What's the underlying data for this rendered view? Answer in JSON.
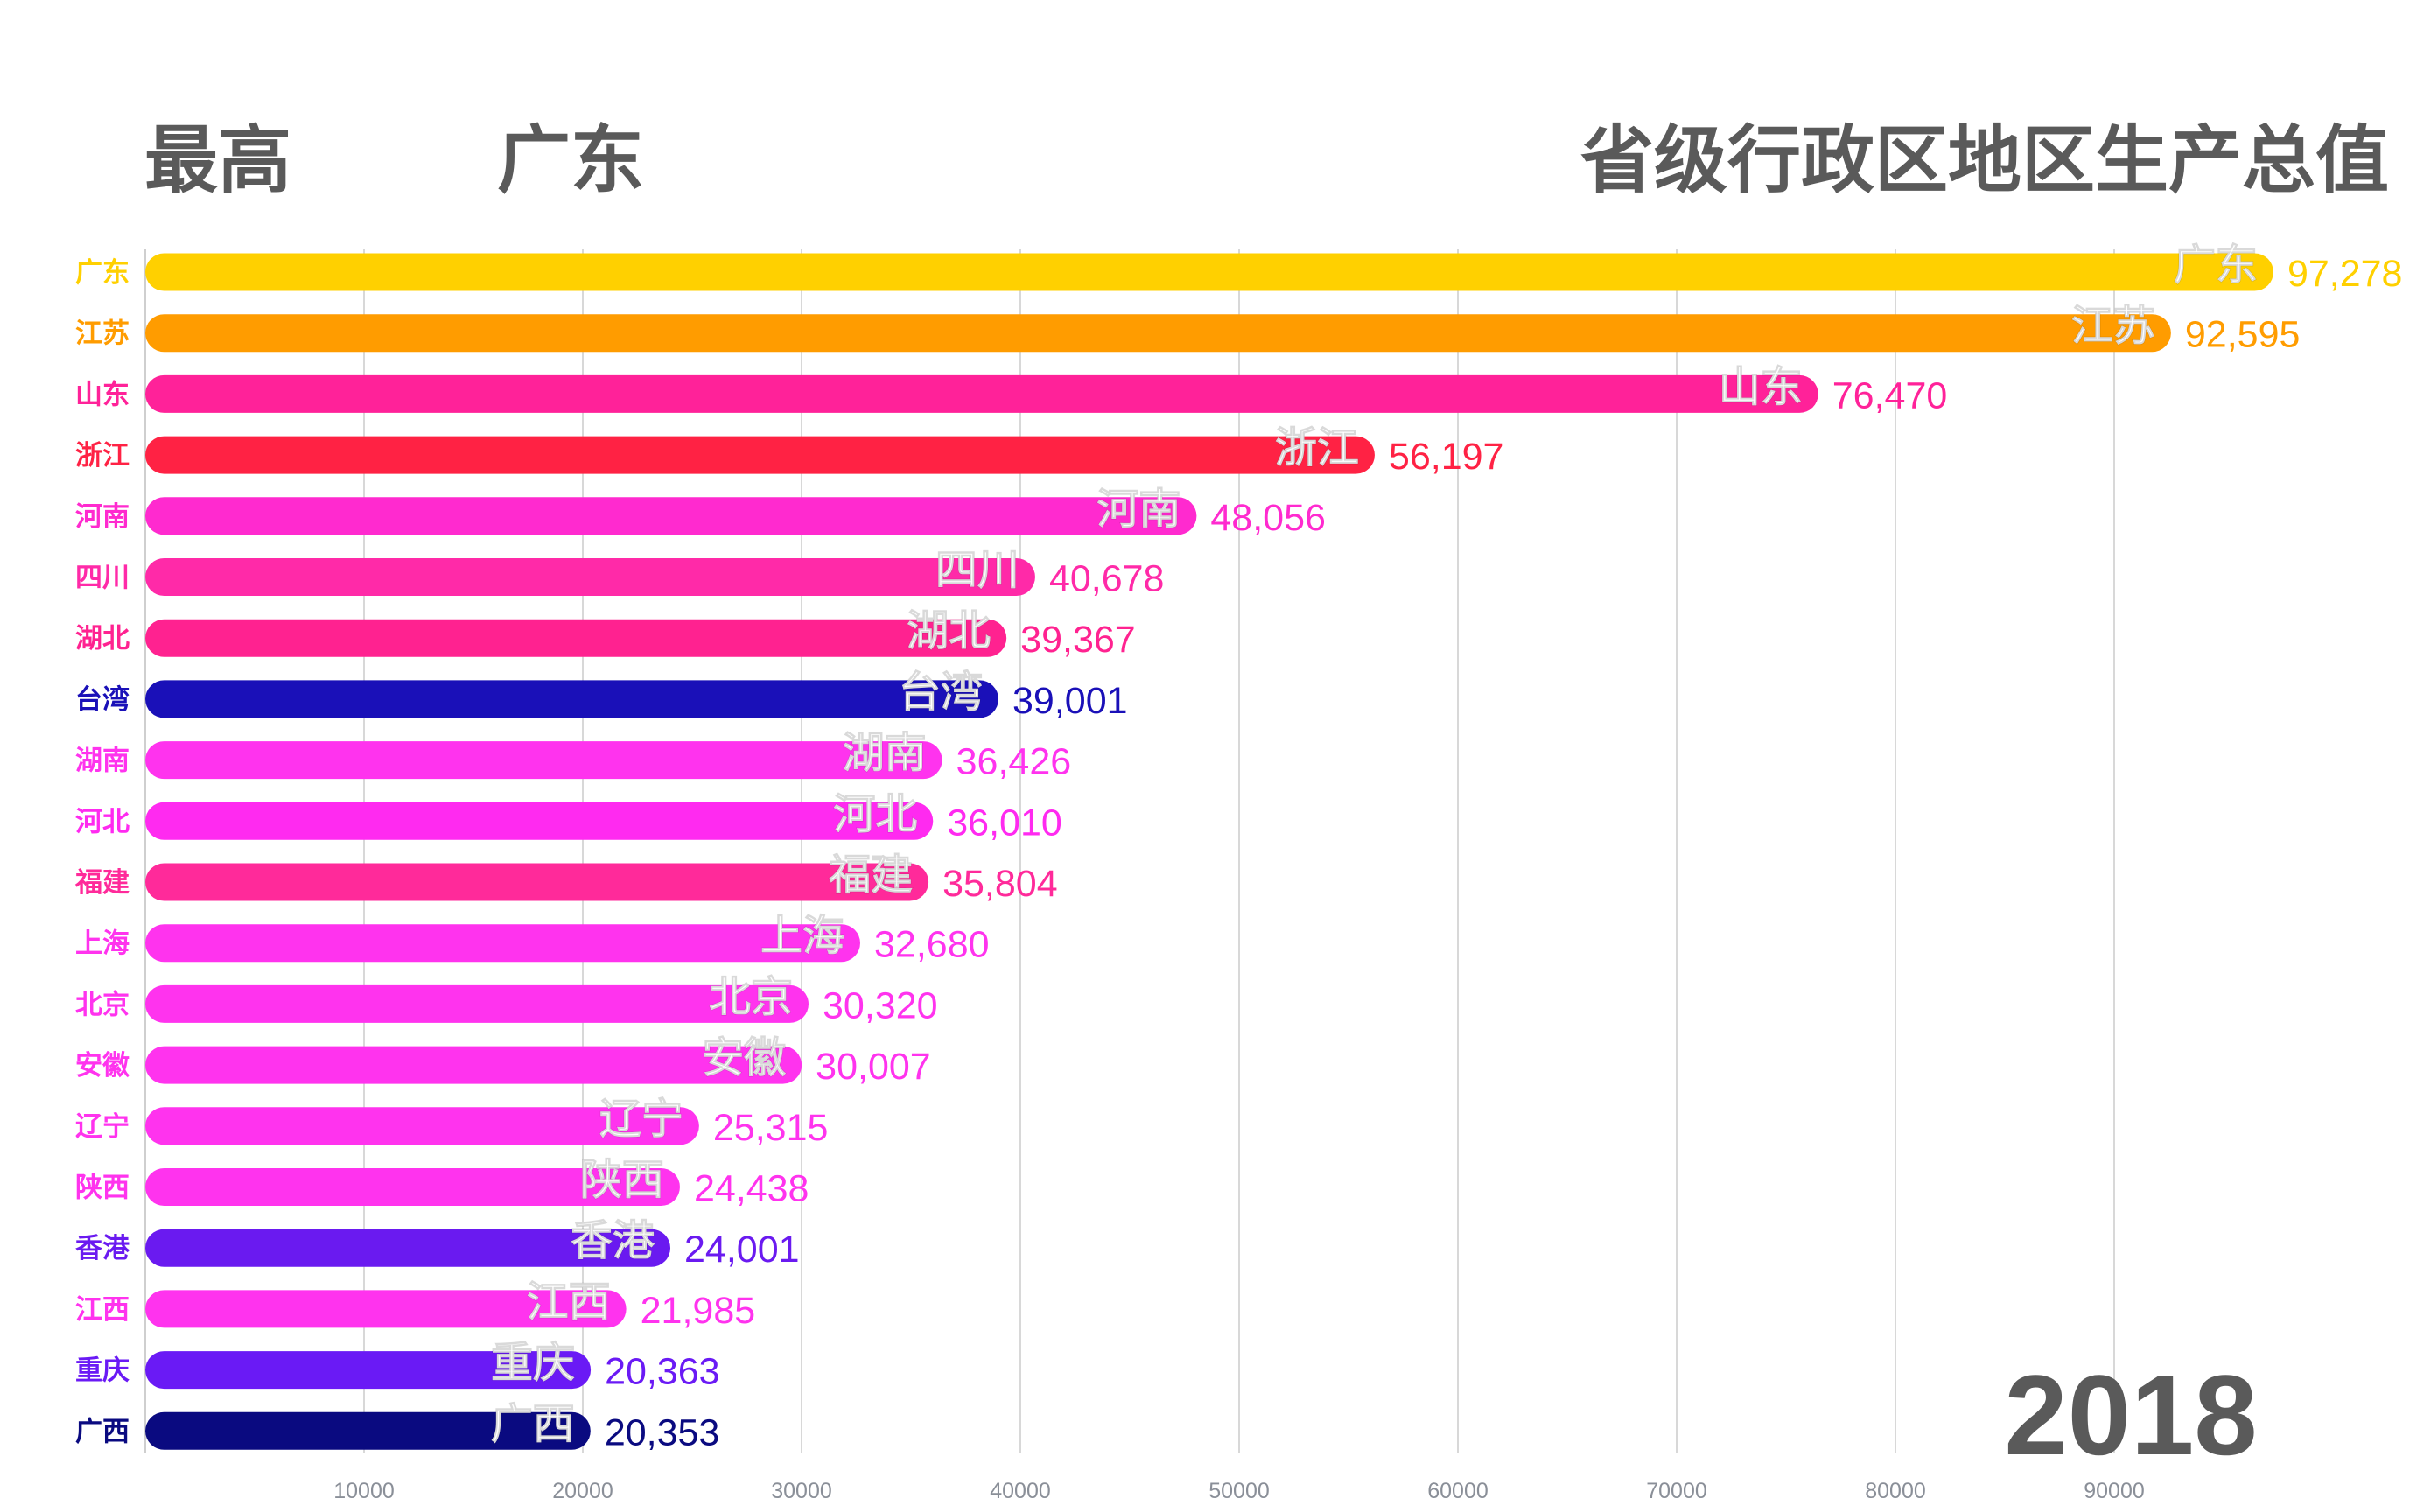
{
  "header": {
    "top_label": "最高",
    "top_name": "广东",
    "title": "省级行政区地区生产总值"
  },
  "year": "2018",
  "chart_data": {
    "type": "bar",
    "orientation": "horizontal",
    "title": "省级行政区地区生产总值",
    "xlim": [
      0,
      100000
    ],
    "grid": true,
    "ticks": [
      "10000",
      "20000",
      "30000",
      "40000",
      "50000",
      "60000",
      "70000",
      "80000",
      "90000"
    ],
    "tick_values": [
      10000,
      20000,
      30000,
      40000,
      50000,
      60000,
      70000,
      80000,
      90000
    ],
    "categories": [
      "广东",
      "江苏",
      "山东",
      "浙江",
      "河南",
      "四川",
      "湖北",
      "台湾",
      "湖南",
      "河北",
      "福建",
      "上海",
      "北京",
      "安徽",
      "辽宁",
      "陕西",
      "香港",
      "江西",
      "重庆",
      "广西"
    ],
    "values": [
      97278,
      92595,
      76470,
      56197,
      48056,
      40678,
      39367,
      39001,
      36426,
      36010,
      35804,
      32680,
      30320,
      30007,
      25315,
      24438,
      24001,
      21985,
      20363,
      20353
    ],
    "value_labels": [
      "97,278",
      "92,595",
      "76,470",
      "56,197",
      "48,056",
      "40,678",
      "39,367",
      "39,001",
      "36,426",
      "36,010",
      "35,804",
      "32,680",
      "30,320",
      "30,007",
      "25,315",
      "24,438",
      "24,001",
      "21,985",
      "20,363",
      "20,353"
    ],
    "colors": [
      "#FFD000",
      "#FF9C00",
      "#FF2299",
      "#FF2244",
      "#FF2ACF",
      "#FF2AA8",
      "#FF2290",
      "#1A10B8",
      "#FF33EE",
      "#FF2AF0",
      "#FF2A9A",
      "#FF33EE",
      "#FF33EE",
      "#FF33EE",
      "#FF33EE",
      "#FF33EE",
      "#6A1AF0",
      "#FF33EE",
      "#6A1AF5",
      "#0A0A80"
    ]
  }
}
